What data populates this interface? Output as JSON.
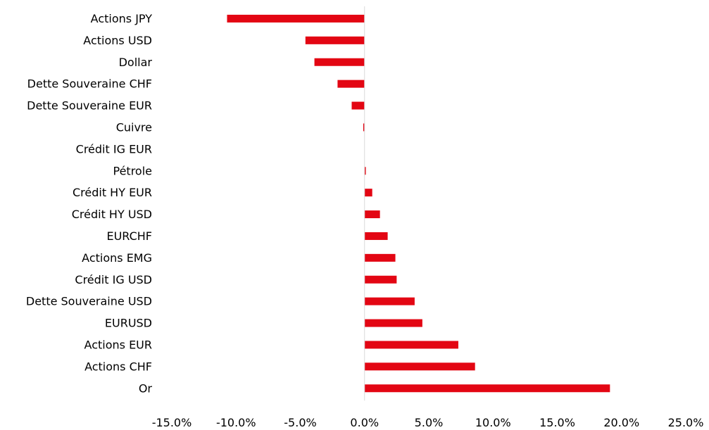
{
  "chart_data": {
    "type": "bar",
    "orientation": "horizontal",
    "categories": [
      "Actions JPY",
      "Actions USD",
      "Dollar",
      "Dette Souveraine CHF",
      "Dette Souveraine EUR",
      "Cuivre",
      "Crédit IG EUR",
      "Pétrole",
      "Crédit HY EUR",
      "Crédit HY USD",
      "EURCHF",
      "Actions EMG",
      "Crédit IG USD",
      "Dette Souveraine USD",
      "EURUSD",
      "Actions EUR",
      "Actions CHF",
      "Or"
    ],
    "values": [
      -10.7,
      -4.6,
      -3.9,
      -2.1,
      -1.0,
      -0.1,
      0.0,
      0.1,
      0.6,
      1.2,
      1.8,
      2.4,
      2.5,
      3.9,
      4.5,
      7.3,
      8.6,
      19.1
    ],
    "xlim": [
      -15,
      25
    ],
    "xticks": [
      "-15.0%",
      "-10.0%",
      "-5.0%",
      "0.0%",
      "5.0%",
      "10.0%",
      "15.0%",
      "20.0%",
      "25.0%"
    ],
    "xtick_values": [
      -15,
      -10,
      -5,
      0,
      5,
      10,
      15,
      20,
      25
    ],
    "bar_color": "#e30613",
    "axis_color": "#d9d9d9",
    "title": "",
    "xlabel": "",
    "ylabel": "",
    "grid": false,
    "legend": "none"
  }
}
